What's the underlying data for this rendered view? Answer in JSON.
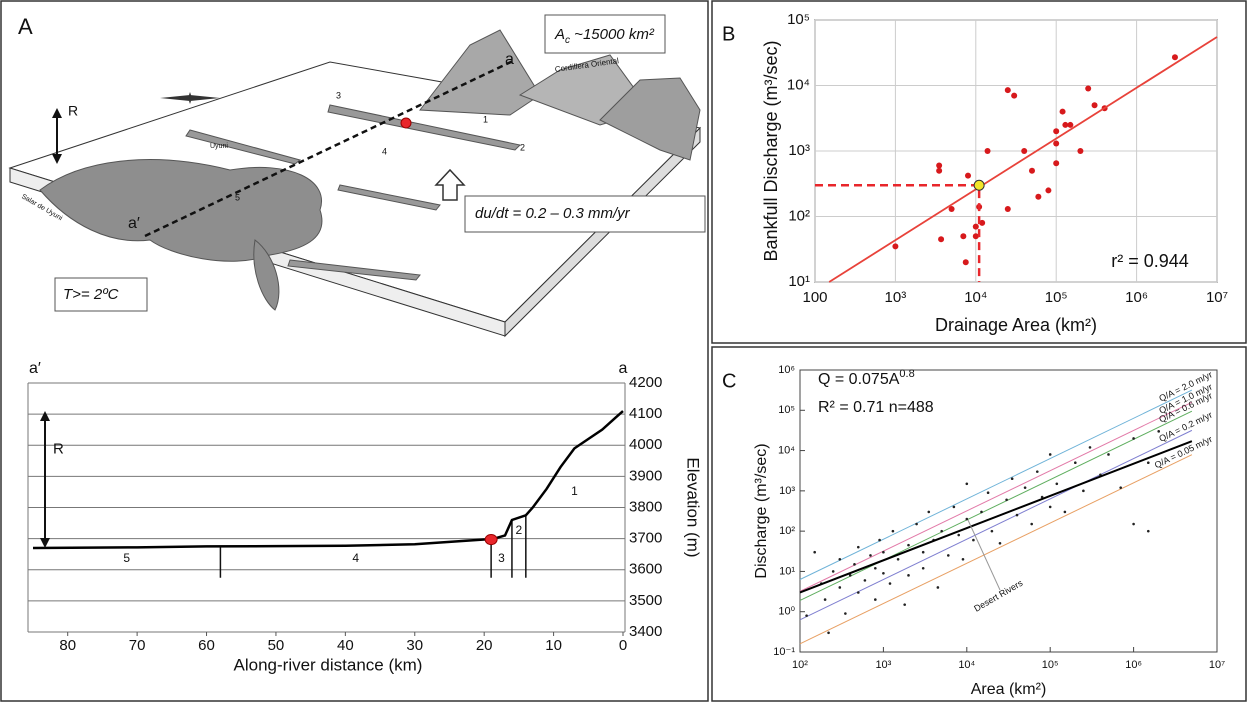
{
  "diagram": {
    "panel_label": "A",
    "area_box": [
      "A",
      "c",
      " ~15000 km²"
    ],
    "range_label": "Cordillera Oriental",
    "end_a": "a",
    "end_a_prime": "a′",
    "relief": "R",
    "uplift_box": "du/dt = 0.2 – 0.3 mm/yr",
    "temp_box": "T>= 2ºC",
    "town": "Uyuni",
    "salar": "Salar de Uyuni",
    "reach_numbers": [
      "1",
      "2",
      "3",
      "4",
      "5"
    ]
  },
  "chart_data": [
    {
      "type": "line",
      "x_label": "Along-river distance (km)",
      "y_label": "Elevation (m)",
      "start_label": "a′",
      "end_label": "a",
      "relief_label": "R",
      "x": [
        85,
        70,
        60,
        50,
        40,
        30,
        20,
        19,
        17,
        16,
        14,
        13,
        11,
        9,
        7,
        5,
        3,
        1,
        0
      ],
      "values": [
        3670,
        3672,
        3675,
        3676,
        3677,
        3682,
        3697,
        3697,
        3710,
        3760,
        3775,
        3800,
        3860,
        3930,
        3990,
        4020,
        4050,
        4090,
        4110
      ],
      "color": "#000000",
      "marker": {
        "x": 19,
        "value": 3697,
        "color": "#e8262b"
      },
      "section_bounds": [
        58,
        19,
        16,
        14
      ],
      "section_labels": [
        "5",
        "4",
        "3",
        "2",
        "1"
      ],
      "xlim": [
        85,
        0
      ],
      "xticks": [
        80,
        70,
        60,
        50,
        40,
        30,
        20,
        10,
        0
      ],
      "ylim": [
        3400,
        4200
      ],
      "yticks": [
        3400,
        3500,
        3600,
        3700,
        3800,
        3900,
        4000,
        4100,
        4200
      ],
      "grid": true
    },
    {
      "type": "scatter",
      "panel_label": "B",
      "x_label": "Drainage Area (km²)",
      "y_label": "Bankfull Discharge (m³/sec)",
      "log_x": true,
      "log_y": true,
      "grid": true,
      "color": "#d7191c",
      "x": [
        1000,
        3500,
        3500,
        3700,
        5000,
        7000,
        7500,
        8000,
        10000,
        10000,
        11000,
        12000,
        14000,
        25000,
        30000,
        25000,
        40000,
        50000,
        60000,
        80000,
        100000,
        100000,
        120000,
        130000,
        150000,
        200000,
        250000,
        300000,
        400000,
        3000000,
        100000
      ],
      "values": [
        35,
        600,
        500,
        45,
        130,
        50,
        20,
        420,
        70,
        50,
        140,
        80,
        1000,
        8500,
        7000,
        130,
        1000,
        500,
        200,
        250,
        650,
        1300,
        4000,
        2500,
        2500,
        1000,
        9000,
        5000,
        4500,
        27000,
        2000
      ],
      "highlight": {
        "x": 11000,
        "value": 300,
        "color": "#f2e52a"
      },
      "fit": {
        "x": [
          150,
          10000000
        ],
        "values": [
          10,
          55000
        ],
        "label": "r² = 0.944"
      },
      "xlim": [
        100,
        10000000
      ],
      "xticks": [
        100,
        {
          "value": 1000,
          "label": "10³"
        },
        {
          "value": 10000,
          "label": "10⁴"
        },
        {
          "value": 100000,
          "label": "10⁵"
        },
        {
          "value": 1000000,
          "label": "10⁶"
        },
        {
          "value": 10000000,
          "label": "10⁷"
        }
      ],
      "ylim": [
        10,
        100000
      ],
      "yticks": [
        {
          "value": 10,
          "label": "10¹"
        },
        {
          "value": 100,
          "label": "10²"
        },
        {
          "value": 1000,
          "label": "10³"
        },
        {
          "value": 10000,
          "label": "10⁴"
        },
        {
          "value": 100000,
          "label": "10⁵"
        }
      ]
    },
    {
      "type": "scatter",
      "panel_label": "C",
      "x_label": "Area (km²)",
      "y_label": "Discharge (m³/sec)",
      "log_x": true,
      "log_y": true,
      "grid": false,
      "color": "#222222",
      "equation": [
        "Q = 0.075A",
        "0.8"
      ],
      "stats": "R² = 0.71  n=488",
      "x": [
        120,
        150,
        180,
        200,
        220,
        250,
        300,
        300,
        350,
        400,
        450,
        500,
        500,
        600,
        700,
        800,
        800,
        900,
        1000,
        1000,
        1200,
        1300,
        1500,
        1800,
        2000,
        2000,
        2500,
        3000,
        3000,
        3500,
        4000,
        4500,
        5000,
        6000,
        7000,
        8000,
        9000,
        10000,
        10000,
        12000,
        15000,
        18000,
        20000,
        25000,
        30000,
        35000,
        40000,
        50000,
        60000,
        70000,
        80000,
        100000,
        100000,
        120000,
        150000,
        200000,
        250000,
        300000,
        400000,
        500000,
        700000,
        1000000,
        1000000,
        1500000,
        2000000,
        1500000
      ],
      "values": [
        0.8,
        30,
        5,
        2,
        0.3,
        10,
        4,
        20,
        0.9,
        8,
        15,
        3,
        40,
        6,
        25,
        2,
        12,
        60,
        9,
        30,
        5,
        100,
        20,
        1.5,
        45,
        8,
        150,
        30,
        12,
        300,
        60,
        4,
        100,
        25,
        400,
        80,
        20,
        200,
        1500,
        60,
        300,
        900,
        100,
        50,
        600,
        2000,
        250,
        1200,
        150,
        3000,
        700,
        400,
        8000,
        1500,
        300,
        5000,
        1000,
        12000,
        2500,
        8000,
        1200,
        150,
        20000,
        5000,
        30000,
        100
      ],
      "fit": {
        "x": [
          100,
          5000000
        ],
        "values": [
          3,
          17100
        ]
      },
      "reference_lines": [
        {
          "name": "Q/A = 2.0 m/yr",
          "color": "#6fb3d8",
          "x": [
            100,
            5000000
          ],
          "values": [
            6.3,
            317000
          ]
        },
        {
          "name": "Q/A = 1.0 m/yr",
          "color": "#e27aa8",
          "x": [
            100,
            5000000
          ],
          "values": [
            3.2,
            158000
          ]
        },
        {
          "name": "Q/A = 0.6 m/yr",
          "color": "#5fae5f",
          "x": [
            100,
            5000000
          ],
          "values": [
            1.9,
            95000
          ]
        },
        {
          "name": "Q/A = 0.2 m/yr",
          "color": "#7f7fd0",
          "x": [
            100,
            5000000
          ],
          "values": [
            0.63,
            31700
          ]
        },
        {
          "name": "Q/A = 0.05 m/yr",
          "color": "#e8a064",
          "x": [
            100,
            5000000
          ],
          "values": [
            0.16,
            7900
          ]
        }
      ],
      "annotation": "Desert Rivers",
      "xlim": [
        100,
        10000000
      ],
      "xticks": [
        {
          "value": 100,
          "label": "10²"
        },
        {
          "value": 1000,
          "label": "10³"
        },
        {
          "value": 10000,
          "label": "10⁴"
        },
        {
          "value": 100000,
          "label": "10⁵"
        },
        {
          "value": 1000000,
          "label": "10⁶"
        },
        {
          "value": 10000000,
          "label": "10⁷"
        }
      ],
      "ylim": [
        0.1,
        1000000
      ],
      "yticks": [
        {
          "value": 0.1,
          "label": "10⁻¹"
        },
        {
          "value": 1,
          "label": "10⁰"
        },
        {
          "value": 10,
          "label": "10¹"
        },
        {
          "value": 100,
          "label": "10²"
        },
        {
          "value": 1000,
          "label": "10³"
        },
        {
          "value": 10000,
          "label": "10⁴"
        },
        {
          "value": 100000,
          "label": "10⁵"
        },
        {
          "value": 1000000,
          "label": "10⁶"
        }
      ]
    }
  ]
}
